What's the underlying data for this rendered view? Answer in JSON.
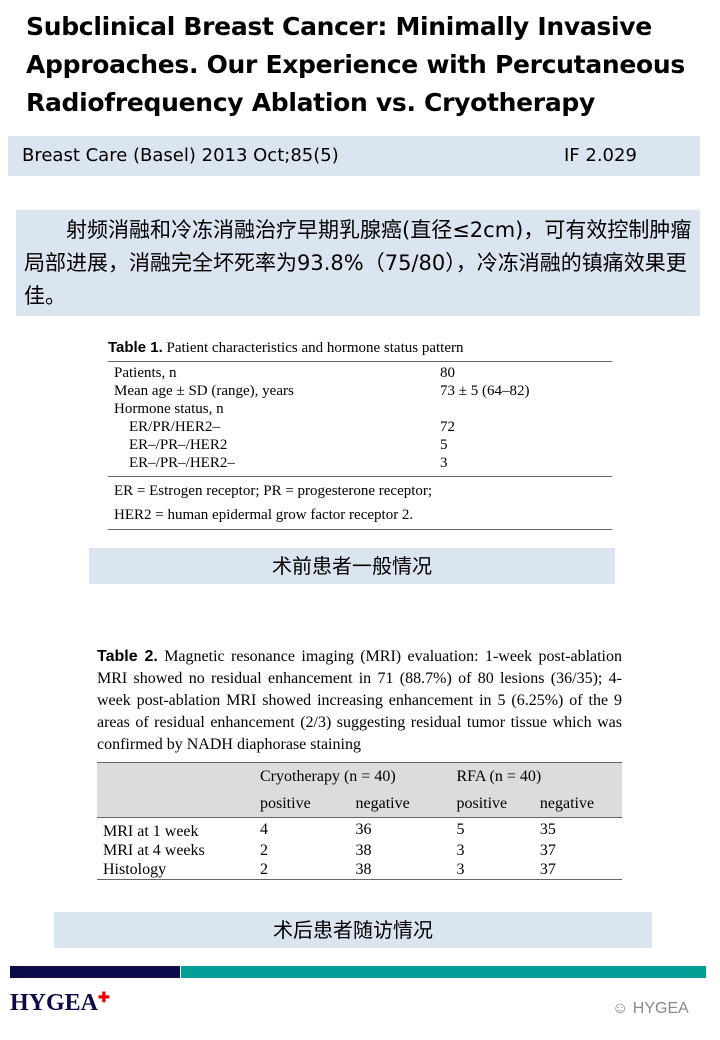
{
  "title": "Subclinical Breast Cancer: Minimally Invasive Approaches. Our Experience with Percutaneous Radiofrequency Ablation vs. Cryotherapy",
  "journal": "Breast Care (Basel) 2013 Oct;85(5)",
  "impact_factor": "IF 2.029",
  "summary": "射频消融和冷冻消融治疗早期乳腺癌(直径≤2cm)，可有效控制肿瘤局部进展，消融完全坏死率为93.8%（75/80），冷冻消融的镇痛效果更佳。",
  "table1": {
    "caption_bold": "Table 1.",
    "caption": " Patient characteristics and hormone status pattern",
    "rows": [
      {
        "label": "Patients, n",
        "value": "80"
      },
      {
        "label": "Mean age ± SD (range), years",
        "value": "73 ± 5 (64–82)"
      },
      {
        "label": "Hormone status, n",
        "value": ""
      },
      {
        "label": "ER/PR/HER2–",
        "value": "72"
      },
      {
        "label": "ER–/PR–/HER2",
        "value": "5"
      },
      {
        "label": "ER–/PR–/HER2–",
        "value": "3"
      }
    ],
    "footnote1": "ER = Estrogen receptor; PR = progesterone receptor;",
    "footnote2": "HER2 = human epidermal grow factor receptor 2."
  },
  "label1": "术前患者一般情况",
  "table2": {
    "caption_bold": "Table 2.",
    "caption": " Magnetic resonance imaging (MRI) evaluation: 1-week post-ablation MRI showed no residual enhancement in 71 (88.7%) of 80 lesions (36/35); 4-week post-ablation MRI showed increasing enhancement in 5 (6.25%) of the 9 areas of residual enhancement (2/3) suggesting residual tumor tissue which was confirmed by NADH diaphorase staining",
    "groups": [
      "Cryotherapy (n = 40)",
      "RFA (n = 40)"
    ],
    "subheaders": [
      "positive",
      "negative",
      "positive",
      "negative"
    ],
    "rows": [
      {
        "label": "MRI at 1 week",
        "values": [
          "4",
          "36",
          "5",
          "35"
        ]
      },
      {
        "label": "MRI at 4 weeks",
        "values": [
          "2",
          "38",
          "3",
          "37"
        ]
      },
      {
        "label": "Histology",
        "values": [
          "2",
          "38",
          "3",
          "37"
        ]
      }
    ]
  },
  "label2": "术后患者随访情况",
  "footer": {
    "logo": "HYGEA",
    "watermark": "HYGEA",
    "colors": {
      "navy": "#0b0b4a",
      "teal": "#00a096"
    }
  }
}
